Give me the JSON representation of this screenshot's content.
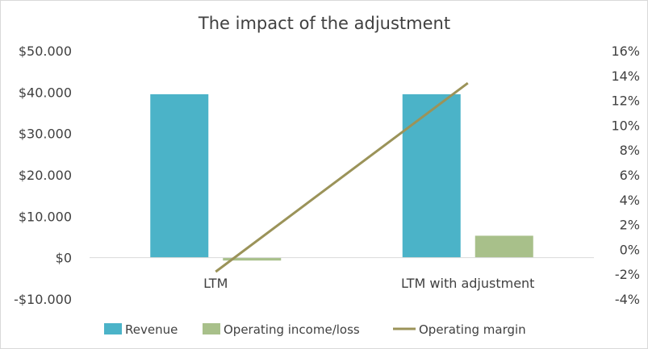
{
  "chart_data": {
    "type": "bar",
    "title": "The impact of the adjustment",
    "categories": [
      "LTM",
      "LTM with adjustment"
    ],
    "series": [
      {
        "name": "Revenue",
        "type": "bar",
        "axis": "left",
        "color": "#4bb3c8",
        "values": [
          39500,
          39500
        ]
      },
      {
        "name": "Operating income/loss",
        "type": "bar",
        "axis": "left",
        "color": "#a8c08a",
        "values": [
          -700,
          5300
        ]
      },
      {
        "name": "Operating margin",
        "type": "line",
        "axis": "right",
        "color": "#9b9359",
        "values": [
          -0.018,
          0.134
        ]
      }
    ],
    "y_left": {
      "ylim": [
        -10000,
        50000
      ],
      "ticks": [
        50000,
        40000,
        30000,
        20000,
        10000,
        0,
        -10000
      ],
      "tick_labels": [
        "$50.000",
        "$40.000",
        "$30.000",
        "$20.000",
        "$10.000",
        "$0",
        "-$10.000"
      ]
    },
    "y_right": {
      "ylim": [
        -0.04,
        0.16
      ],
      "ticks": [
        0.16,
        0.14,
        0.12,
        0.1,
        0.08,
        0.06,
        0.04,
        0.02,
        0.0,
        -0.02,
        -0.04
      ],
      "tick_labels": [
        "16%",
        "14%",
        "12%",
        "10%",
        "8%",
        "6%",
        "4%",
        "2%",
        "0%",
        "-2%",
        "-4%"
      ]
    },
    "grid": false,
    "legend": "bottom"
  }
}
